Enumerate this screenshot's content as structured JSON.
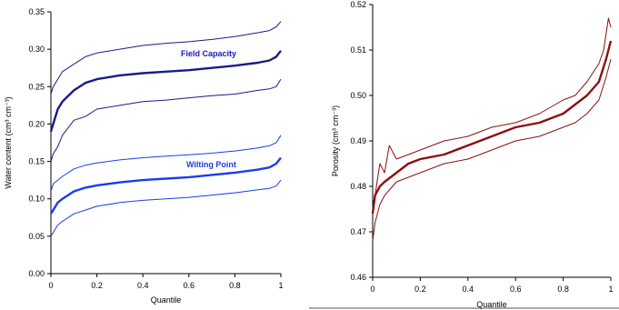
{
  "chart_data": [
    {
      "type": "line",
      "xlabel": "Quantile",
      "ylabel": "Water content (cm³ cm⁻³)",
      "xlim": [
        0,
        1
      ],
      "ylim": [
        0,
        0.35
      ],
      "x_ticks": [
        "0",
        "0.2",
        "0.4",
        "0.6",
        "0.8",
        "1"
      ],
      "y_ticks": [
        "0.00",
        "0.05",
        "0.10",
        "0.15",
        "0.20",
        "0.25",
        "0.30",
        "0.35"
      ],
      "grid": false,
      "annotations": [
        {
          "text": "Field Capacity",
          "color": "#1a1aa8"
        },
        {
          "text": "Wilting Point",
          "color": "#1a3df0"
        }
      ],
      "series": [
        {
          "color": "#1a1a8c",
          "style": "thin",
          "points": [
            [
              0,
              0.24
            ],
            [
              0.01,
              0.25
            ],
            [
              0.03,
              0.26
            ],
            [
              0.05,
              0.27
            ],
            [
              0.1,
              0.28
            ],
            [
              0.15,
              0.29
            ],
            [
              0.2,
              0.295
            ],
            [
              0.3,
              0.3
            ],
            [
              0.4,
              0.305
            ],
            [
              0.5,
              0.308
            ],
            [
              0.6,
              0.31
            ],
            [
              0.7,
              0.313
            ],
            [
              0.8,
              0.317
            ],
            [
              0.9,
              0.322
            ],
            [
              0.95,
              0.325
            ],
            [
              0.98,
              0.33
            ],
            [
              1.0,
              0.337
            ]
          ]
        },
        {
          "color": "#1a1a8c",
          "style": "bold",
          "points": [
            [
              0,
              0.19
            ],
            [
              0.01,
              0.2
            ],
            [
              0.03,
              0.22
            ],
            [
              0.05,
              0.23
            ],
            [
              0.1,
              0.245
            ],
            [
              0.15,
              0.255
            ],
            [
              0.2,
              0.26
            ],
            [
              0.3,
              0.265
            ],
            [
              0.4,
              0.268
            ],
            [
              0.5,
              0.27
            ],
            [
              0.6,
              0.272
            ],
            [
              0.7,
              0.275
            ],
            [
              0.8,
              0.278
            ],
            [
              0.9,
              0.282
            ],
            [
              0.95,
              0.285
            ],
            [
              0.98,
              0.29
            ],
            [
              1.0,
              0.298
            ]
          ]
        },
        {
          "color": "#1a1a8c",
          "style": "thin",
          "points": [
            [
              0,
              0.15
            ],
            [
              0.01,
              0.16
            ],
            [
              0.03,
              0.17
            ],
            [
              0.05,
              0.185
            ],
            [
              0.1,
              0.205
            ],
            [
              0.15,
              0.21
            ],
            [
              0.2,
              0.22
            ],
            [
              0.3,
              0.225
            ],
            [
              0.4,
              0.23
            ],
            [
              0.5,
              0.232
            ],
            [
              0.6,
              0.235
            ],
            [
              0.7,
              0.238
            ],
            [
              0.8,
              0.24
            ],
            [
              0.9,
              0.245
            ],
            [
              0.95,
              0.247
            ],
            [
              0.98,
              0.25
            ],
            [
              1.0,
              0.26
            ]
          ]
        },
        {
          "color": "#1a3df0",
          "style": "thin",
          "points": [
            [
              0,
              0.11
            ],
            [
              0.01,
              0.12
            ],
            [
              0.03,
              0.125
            ],
            [
              0.05,
              0.13
            ],
            [
              0.1,
              0.14
            ],
            [
              0.15,
              0.145
            ],
            [
              0.2,
              0.148
            ],
            [
              0.3,
              0.152
            ],
            [
              0.4,
              0.155
            ],
            [
              0.5,
              0.157
            ],
            [
              0.6,
              0.159
            ],
            [
              0.7,
              0.161
            ],
            [
              0.8,
              0.164
            ],
            [
              0.9,
              0.168
            ],
            [
              0.95,
              0.171
            ],
            [
              0.98,
              0.175
            ],
            [
              1.0,
              0.185
            ]
          ]
        },
        {
          "color": "#1a3df0",
          "style": "bold",
          "points": [
            [
              0,
              0.08
            ],
            [
              0.01,
              0.085
            ],
            [
              0.03,
              0.095
            ],
            [
              0.05,
              0.1
            ],
            [
              0.1,
              0.11
            ],
            [
              0.15,
              0.115
            ],
            [
              0.2,
              0.118
            ],
            [
              0.3,
              0.122
            ],
            [
              0.4,
              0.125
            ],
            [
              0.5,
              0.127
            ],
            [
              0.6,
              0.129
            ],
            [
              0.7,
              0.132
            ],
            [
              0.8,
              0.135
            ],
            [
              0.9,
              0.139
            ],
            [
              0.95,
              0.142
            ],
            [
              0.98,
              0.147
            ],
            [
              1.0,
              0.155
            ]
          ]
        },
        {
          "color": "#1a3df0",
          "style": "thin",
          "points": [
            [
              0,
              0.05
            ],
            [
              0.01,
              0.055
            ],
            [
              0.03,
              0.065
            ],
            [
              0.05,
              0.07
            ],
            [
              0.1,
              0.08
            ],
            [
              0.15,
              0.085
            ],
            [
              0.2,
              0.09
            ],
            [
              0.3,
              0.095
            ],
            [
              0.4,
              0.098
            ],
            [
              0.5,
              0.1
            ],
            [
              0.6,
              0.102
            ],
            [
              0.7,
              0.105
            ],
            [
              0.8,
              0.108
            ],
            [
              0.9,
              0.112
            ],
            [
              0.95,
              0.114
            ],
            [
              0.98,
              0.117
            ],
            [
              1.0,
              0.125
            ]
          ]
        }
      ]
    },
    {
      "type": "line",
      "xlabel": "Quantile",
      "ylabel": "Porosity (cm³ cm⁻³)",
      "xlim": [
        0,
        1
      ],
      "ylim": [
        0.46,
        0.52
      ],
      "x_ticks": [
        "0",
        "0.2",
        "0.4",
        "0.6",
        "0.8",
        "1"
      ],
      "y_ticks": [
        "0.46",
        "0.47",
        "0.48",
        "0.49",
        "0.50",
        "0.51",
        "0.52"
      ],
      "grid": false,
      "series": [
        {
          "color": "#8b1010",
          "style": "thin",
          "points": [
            [
              0,
              0.474
            ],
            [
              0.01,
              0.478
            ],
            [
              0.03,
              0.485
            ],
            [
              0.05,
              0.483
            ],
            [
              0.07,
              0.489
            ],
            [
              0.1,
              0.486
            ],
            [
              0.15,
              0.487
            ],
            [
              0.2,
              0.488
            ],
            [
              0.3,
              0.49
            ],
            [
              0.4,
              0.491
            ],
            [
              0.5,
              0.493
            ],
            [
              0.6,
              0.494
            ],
            [
              0.7,
              0.496
            ],
            [
              0.8,
              0.499
            ],
            [
              0.85,
              0.5
            ],
            [
              0.9,
              0.503
            ],
            [
              0.95,
              0.507
            ],
            [
              0.97,
              0.51
            ],
            [
              0.99,
              0.517
            ],
            [
              1.0,
              0.515
            ]
          ]
        },
        {
          "color": "#8b1010",
          "style": "bold",
          "points": [
            [
              0,
              0.474
            ],
            [
              0.01,
              0.478
            ],
            [
              0.03,
              0.48
            ],
            [
              0.05,
              0.481
            ],
            [
              0.1,
              0.483
            ],
            [
              0.15,
              0.485
            ],
            [
              0.2,
              0.486
            ],
            [
              0.3,
              0.487
            ],
            [
              0.4,
              0.489
            ],
            [
              0.5,
              0.491
            ],
            [
              0.6,
              0.493
            ],
            [
              0.7,
              0.494
            ],
            [
              0.8,
              0.496
            ],
            [
              0.85,
              0.498
            ],
            [
              0.9,
              0.5
            ],
            [
              0.95,
              0.503
            ],
            [
              0.98,
              0.508
            ],
            [
              1.0,
              0.512
            ]
          ]
        },
        {
          "color": "#8b1010",
          "style": "thin",
          "points": [
            [
              0,
              0.468
            ],
            [
              0.01,
              0.472
            ],
            [
              0.03,
              0.476
            ],
            [
              0.05,
              0.478
            ],
            [
              0.1,
              0.481
            ],
            [
              0.15,
              0.482
            ],
            [
              0.2,
              0.483
            ],
            [
              0.3,
              0.485
            ],
            [
              0.4,
              0.486
            ],
            [
              0.5,
              0.488
            ],
            [
              0.6,
              0.49
            ],
            [
              0.7,
              0.491
            ],
            [
              0.8,
              0.493
            ],
            [
              0.85,
              0.494
            ],
            [
              0.9,
              0.496
            ],
            [
              0.95,
              0.499
            ],
            [
              0.98,
              0.504
            ],
            [
              1.0,
              0.508
            ]
          ]
        }
      ]
    }
  ]
}
